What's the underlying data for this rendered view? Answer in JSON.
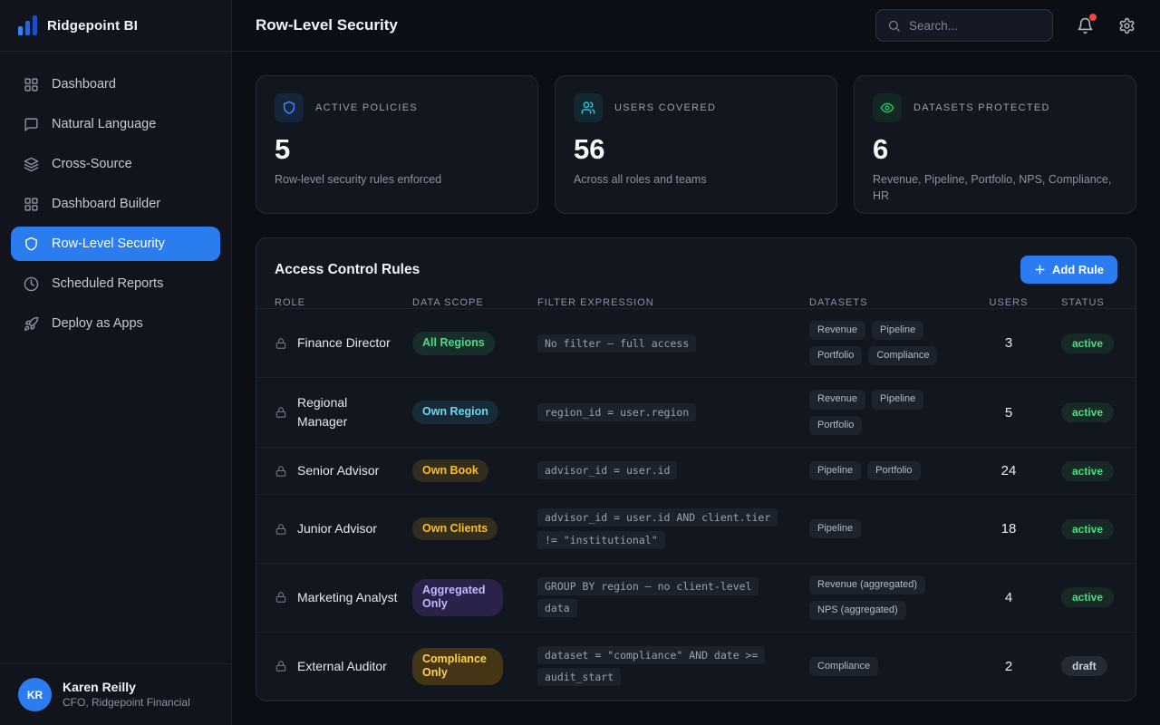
{
  "app": {
    "name": "Ridgepoint BI"
  },
  "header": {
    "title": "Row-Level Security",
    "search_placeholder": "Search..."
  },
  "sidebar": {
    "items": [
      {
        "label": "Dashboard",
        "icon": "grid-icon",
        "active": false
      },
      {
        "label": "Natural Language",
        "icon": "chat-icon",
        "active": false
      },
      {
        "label": "Cross-Source",
        "icon": "layers-icon",
        "active": false
      },
      {
        "label": "Dashboard Builder",
        "icon": "grid-icon",
        "active": false
      },
      {
        "label": "Row-Level Security",
        "icon": "shield-icon",
        "active": true
      },
      {
        "label": "Scheduled Reports",
        "icon": "clock-icon",
        "active": false
      },
      {
        "label": "Deploy as Apps",
        "icon": "rocket-icon",
        "active": false
      }
    ],
    "user": {
      "initials": "KR",
      "name": "Karen Reilly",
      "role": "CFO, Ridgepoint Financial"
    }
  },
  "stats": [
    {
      "label": "Active Policies",
      "value": "5",
      "caption": "Row-level security rules enforced",
      "icon": "shield-icon",
      "accent": "#3b8bf6"
    },
    {
      "label": "Users Covered",
      "value": "56",
      "caption": "Across all roles and teams",
      "icon": "users-icon",
      "accent": "#26c6da"
    },
    {
      "label": "Datasets Protected",
      "value": "6",
      "caption": "Revenue, Pipeline, Portfolio, NPS, Compliance, HR",
      "icon": "eye-icon",
      "accent": "#22c55e"
    }
  ],
  "rules_panel": {
    "title": "Access Control Rules",
    "add_button": "Add Rule",
    "columns": [
      "Role",
      "Data Scope",
      "Filter Expression",
      "Datasets",
      "Users",
      "Status"
    ],
    "scope_colors": {
      "green": {
        "text": "#4ade80",
        "bg": "rgba(74,222,128,0.12)"
      },
      "cyan": {
        "text": "#67d9f0",
        "bg": "rgba(56,189,248,0.12)"
      },
      "amber": {
        "text": "#fbbf24",
        "bg": "rgba(251,191,36,0.14)"
      },
      "strong_amber": {
        "text": "#fcd34d",
        "bg": "rgba(202,138,4,0.28)"
      },
      "purple": {
        "text": "#c4b5fd",
        "bg": "rgba(139,92,246,0.20)"
      }
    },
    "rows": [
      {
        "role": "Finance Director",
        "scope": "All Regions",
        "scope_color": "green",
        "filter": "No filter — full access",
        "datasets": [
          "Revenue",
          "Pipeline",
          "Portfolio",
          "Compliance"
        ],
        "users": 3,
        "status": "active"
      },
      {
        "role": "Regional Manager",
        "scope": "Own Region",
        "scope_color": "cyan",
        "filter": "region_id = user.region",
        "datasets": [
          "Revenue",
          "Pipeline",
          "Portfolio"
        ],
        "users": 5,
        "status": "active"
      },
      {
        "role": "Senior Advisor",
        "scope": "Own Book",
        "scope_color": "amber",
        "filter": "advisor_id = user.id",
        "datasets": [
          "Pipeline",
          "Portfolio"
        ],
        "users": 24,
        "status": "active"
      },
      {
        "role": "Junior Advisor",
        "scope": "Own Clients",
        "scope_color": "amber",
        "filter": "advisor_id = user.id AND client.tier != \"institutional\"",
        "datasets": [
          "Pipeline"
        ],
        "users": 18,
        "status": "active"
      },
      {
        "role": "Marketing Analyst",
        "scope": "Aggregated Only",
        "scope_color": "purple",
        "filter": "GROUP BY region — no client-level data",
        "datasets": [
          "Revenue (aggregated)",
          "NPS (aggregated)"
        ],
        "users": 4,
        "status": "active"
      },
      {
        "role": "External Auditor",
        "scope": "Compliance Only",
        "scope_color": "strong_amber",
        "filter": "dataset = \"compliance\" AND date >= audit_start",
        "datasets": [
          "Compliance"
        ],
        "users": 2,
        "status": "draft"
      }
    ]
  }
}
